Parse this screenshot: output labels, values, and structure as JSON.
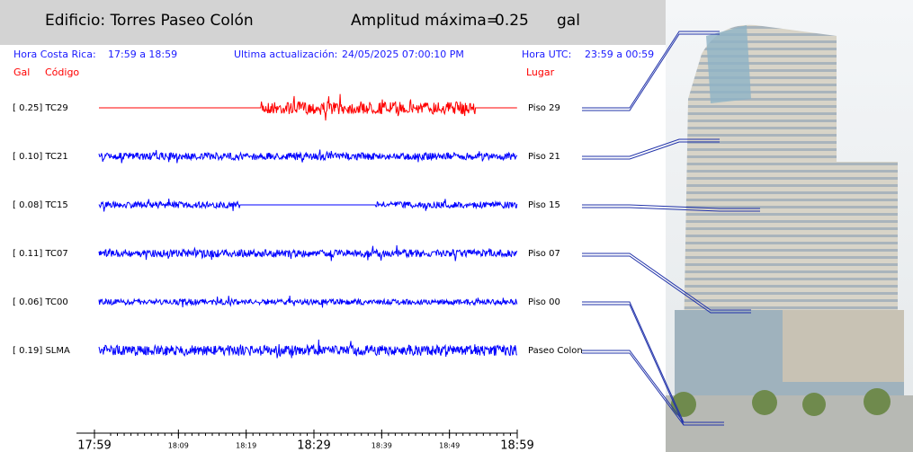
{
  "header": {
    "building": "Edificio: Torres Paseo Colón",
    "max_label": "Amplitud máxima=",
    "max_value": "0.25",
    "max_unit": "gal"
  },
  "info": {
    "local_label": "Hora Costa Rica:",
    "local_range": "17:59 a 18:59",
    "update_label": "Ultima actualización:",
    "update_value": "24/05/2025 07:00:10 PM",
    "utc_label": "Hora UTC:",
    "utc_range": "23:59 a 00:59"
  },
  "columns": {
    "gal": "Gal",
    "code": "Código",
    "place": "Lugar"
  },
  "traces": [
    {
      "gal": "0.25",
      "code": "TC29",
      "place": "Piso 29",
      "color": "#ff0000"
    },
    {
      "gal": "0.10",
      "code": "TC21",
      "place": "Piso 21",
      "color": "#0000ff"
    },
    {
      "gal": "0.08",
      "code": "TC15",
      "place": "Piso 15",
      "color": "#0000ff"
    },
    {
      "gal": "0.11",
      "code": "TC07",
      "place": "Piso 07",
      "color": "#0000ff"
    },
    {
      "gal": "0.06",
      "code": "TC00",
      "place": "Piso 00",
      "color": "#0000ff"
    },
    {
      "gal": "0.19",
      "code": "SLMA",
      "place": "Paseo Colon",
      "color": "#0000ff"
    }
  ],
  "time_axis": [
    "17:59",
    "18:09",
    "18:19",
    "18:29",
    "18:39",
    "18:49",
    "18:59"
  ]
}
